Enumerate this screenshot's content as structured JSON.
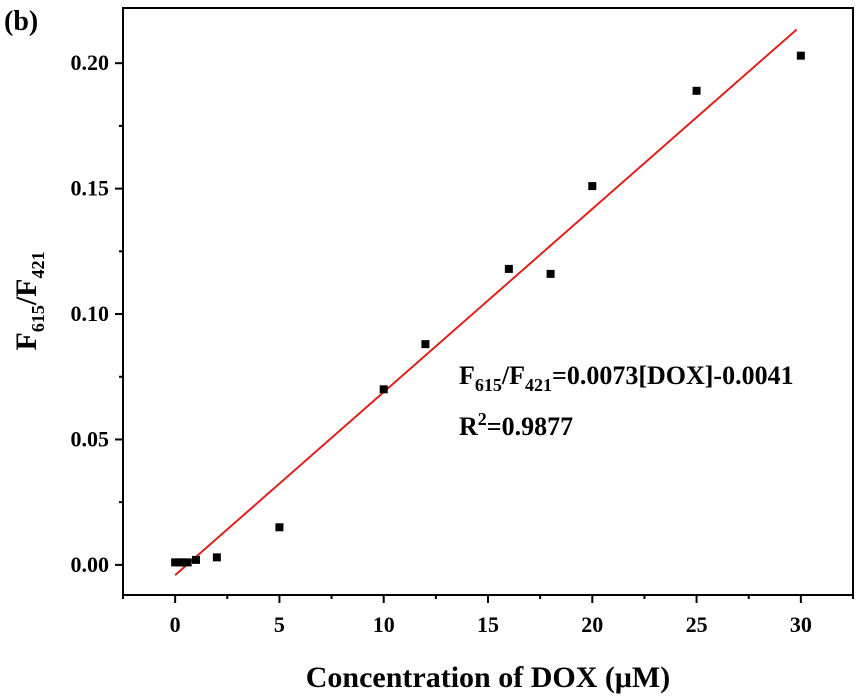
{
  "chart_data": {
    "type": "scatter",
    "panel_label": "(b)",
    "xlabel": "Concentration of DOX (μM)",
    "ylabel": {
      "main1": "F",
      "sub1": "615",
      "slash": "/F",
      "sub2": "421"
    },
    "xlim": [
      -2.5,
      32.5
    ],
    "ylim": [
      -0.012,
      0.222
    ],
    "x_ticks": [
      0,
      5,
      10,
      15,
      20,
      25,
      30
    ],
    "x_tick_labels": [
      "0",
      "5",
      "10",
      "15",
      "20",
      "25",
      "30"
    ],
    "y_ticks": [
      0.0,
      0.05,
      0.1,
      0.15,
      0.2
    ],
    "y_tick_labels": [
      "0.00",
      "0.05",
      "0.10",
      "0.15",
      "0.20"
    ],
    "series": [
      {
        "name": "data",
        "x": [
          0,
          0.2,
          0.4,
          0.6,
          1,
          2,
          5,
          10,
          12,
          16,
          18,
          20,
          25,
          30
        ],
        "y": [
          0.001,
          0.001,
          0.001,
          0.001,
          0.002,
          0.003,
          0.015,
          0.07,
          0.088,
          0.118,
          0.116,
          0.151,
          0.189,
          0.203
        ],
        "color": "#000000"
      }
    ],
    "fit": {
      "slope": 0.0073,
      "intercept": -0.0041,
      "x_range": [
        0,
        29.8
      ],
      "color": "#e0201b"
    },
    "annotation": {
      "eq_main1": "F",
      "eq_sub1": "615",
      "eq_slash": "/F",
      "eq_sub2": "421",
      "eq_rest": "=0.0073[DOX]-0.0041",
      "r_main": "R",
      "r_sup": "2",
      "r_rest": "=0.9877"
    }
  }
}
